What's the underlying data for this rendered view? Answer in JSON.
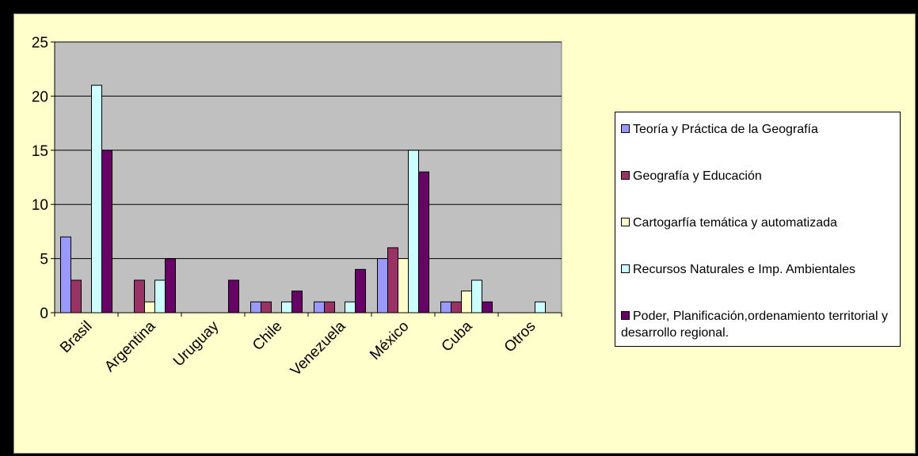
{
  "chart_data": {
    "type": "bar",
    "categories": [
      "Brasil",
      "Argentina",
      "Uruguay",
      "Chile",
      "Venezuela",
      "México",
      "Cuba",
      "Otros"
    ],
    "ylim": [
      0,
      25
    ],
    "yticks": [
      "0",
      "5",
      "10",
      "15",
      "20",
      "25"
    ],
    "grid": true,
    "legend_position": "right",
    "series": [
      {
        "name": "Teoría y Práctica de la Geografía",
        "color": "#9999ff",
        "values": [
          7,
          0,
          0,
          1,
          1,
          5,
          1,
          0
        ]
      },
      {
        "name": "Geografía y Educación",
        "color": "#993366",
        "values": [
          3,
          3,
          0,
          1,
          1,
          6,
          1,
          0
        ]
      },
      {
        "name": "Cartogarfía temática y automatizada",
        "color": "#ffffcc",
        "values": [
          0,
          1,
          0,
          0,
          0,
          5,
          2,
          0
        ]
      },
      {
        "name": "Recursos Naturales e Imp. Ambientales",
        "color": "#ccffff",
        "values": [
          21,
          3,
          0,
          1,
          1,
          15,
          3,
          1
        ]
      },
      {
        "name": "Poder, Planificación,ordenamiento territorial y desarrollo regional.",
        "color": "#660066",
        "values": [
          15,
          5,
          3,
          2,
          4,
          13,
          1,
          0
        ]
      }
    ],
    "plot_background": "#c0c0c0",
    "frame_background": "#ffffcc"
  }
}
